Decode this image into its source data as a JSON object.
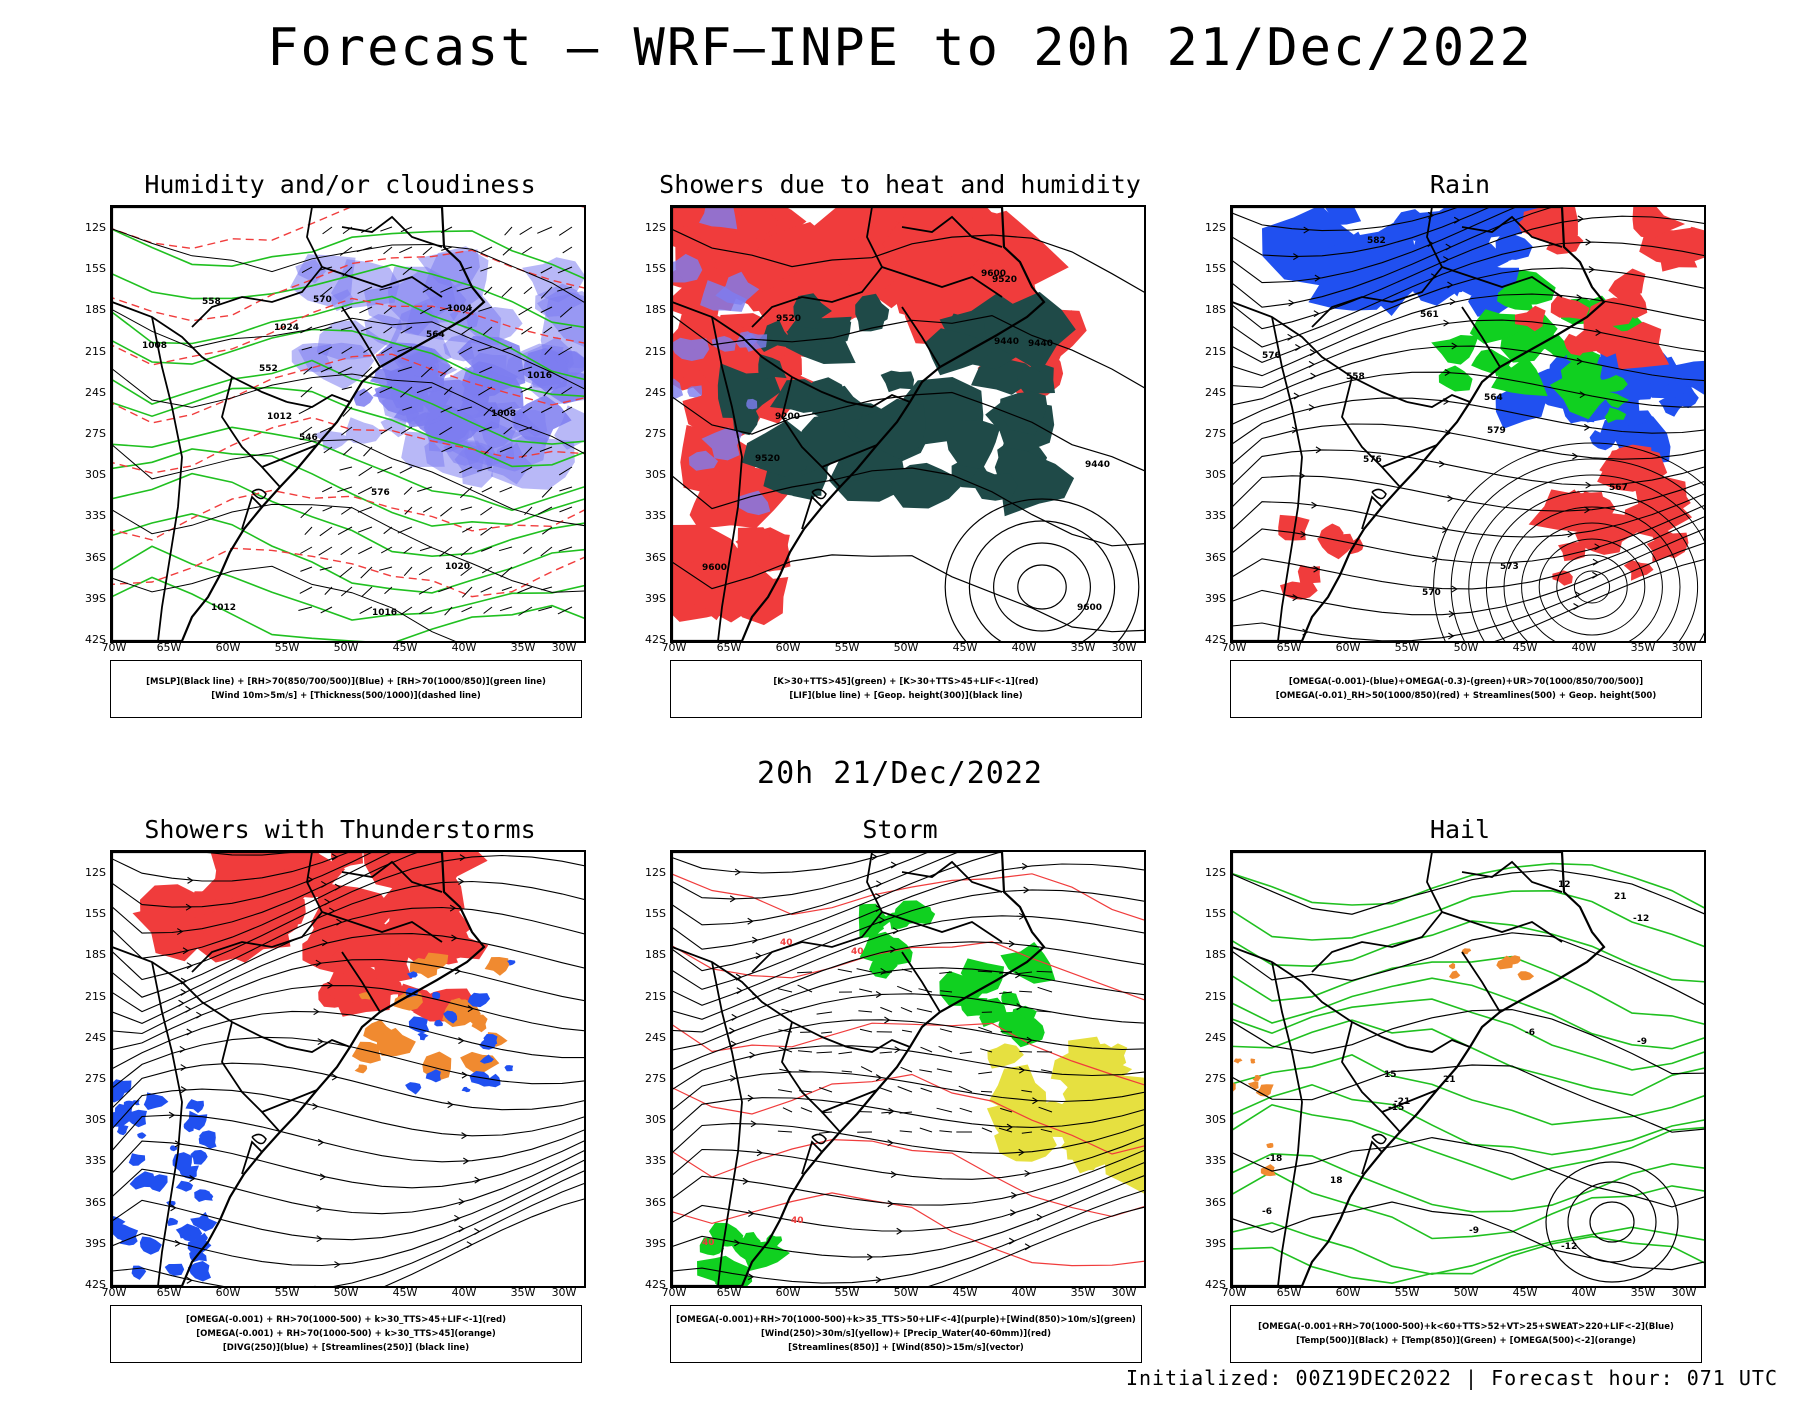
{
  "title": "Forecast — WRF—INPE to 20h 21/Dec/2022",
  "subtitle": "20h 21/Dec/2022",
  "footer": "Initialized: 00Z19DEC2022 | Forecast hour: 071 UTC",
  "lat_labels": [
    "12S",
    "15S",
    "18S",
    "21S",
    "24S",
    "27S",
    "30S",
    "33S",
    "36S",
    "39S",
    "42S"
  ],
  "lon_labels": [
    "70W",
    "65W",
    "60W",
    "55W",
    "50W",
    "45W",
    "40W",
    "35W",
    "30W"
  ],
  "colors": {
    "humidity_blue": "#7d7df0",
    "green_contour": "#20c020",
    "red_field": "#f03c3c",
    "dark_teal": "#1f4a48",
    "blue_field": "#2050f0",
    "green_field": "#10d020",
    "orange_field": "#f08a30",
    "yellow_field": "#e6e040",
    "black_line": "#000000"
  },
  "panels": [
    {
      "title": "Humidity and/or cloudiness",
      "legend": [
        "[MSLP](Black line) + [RH>70(850/700/500)](Blue) + [RH>70(1000/850)](green line)",
        "[Wind 10m>5m/s] + [Thickness(500/1000)](dashed line)"
      ],
      "contour_labels": [
        "1008",
        "1008",
        "1012",
        "1012",
        "1016",
        "1016",
        "1020",
        "1024",
        "1004",
        "576",
        "570",
        "564",
        "558",
        "552",
        "546"
      ]
    },
    {
      "title": "Showers due to heat and humidity",
      "legend": [
        "[K>30+TTS>45](green) + [K>30+TTS>45+LIF<-1](red)",
        "[LIF](blue line) + [Geop. height(300)](black line)"
      ],
      "contour_labels": [
        "9600",
        "9600",
        "9600",
        "9520",
        "9520",
        "9520",
        "9440",
        "9440",
        "9440",
        "9200"
      ]
    },
    {
      "title": "Rain",
      "legend": [
        "[OMEGA(-0.001)-(blue)+OMEGA(-0.3)-(green)+UR>70(1000/850/700/500)]",
        "[OMEGA(-0.01)_RH>50(1000/850)(red) + Streamlines(500) + Geop. height(500)"
      ],
      "contour_labels": [
        "576",
        "582",
        "579",
        "576",
        "573",
        "570",
        "567",
        "564",
        "558",
        "561"
      ]
    },
    {
      "title": "Showers with Thunderstorms",
      "legend": [
        "[OMEGA(-0.001) + RH>70(1000-500) + k>30_TTS>45+LIF<-1](red)",
        "[OMEGA(-0.001) + RH>70(1000-500) + k>30_TTS>45](orange)",
        "[DIVG(250)](blue) + [Streamlines(250)] (black line)"
      ],
      "contour_labels": []
    },
    {
      "title": "Storm",
      "legend": [
        "[OMEGA(-0.001)+RH>70(1000-500)+k>35_TTS>50+LIF<-4](purple)+[Wind(850)>10m/s](green)",
        "[Wind(250)>30m/s](yellow)+ [Precip_Water(40-60mm)](red)",
        "[Streamlines(850)] + [Wind(850)>15m/s](vector)"
      ],
      "contour_labels": [
        "40",
        "40",
        "40",
        "40"
      ]
    },
    {
      "title": "Hail",
      "legend": [
        "[OMEGA(-0.001+RH>70(1000-500)+k<60+TTS>52+VT>25+SWEAT>220+LIF<-2](Blue)",
        "[Temp(500)](Black) + [Temp(850)](Green) + [OMEGA(500)<-2](orange)"
      ],
      "contour_labels": [
        "-6",
        "-6",
        "-9",
        "-9",
        "-12",
        "-12",
        "-15",
        "-18",
        "-21",
        "12",
        "15",
        "18",
        "21",
        "21"
      ]
    }
  ]
}
